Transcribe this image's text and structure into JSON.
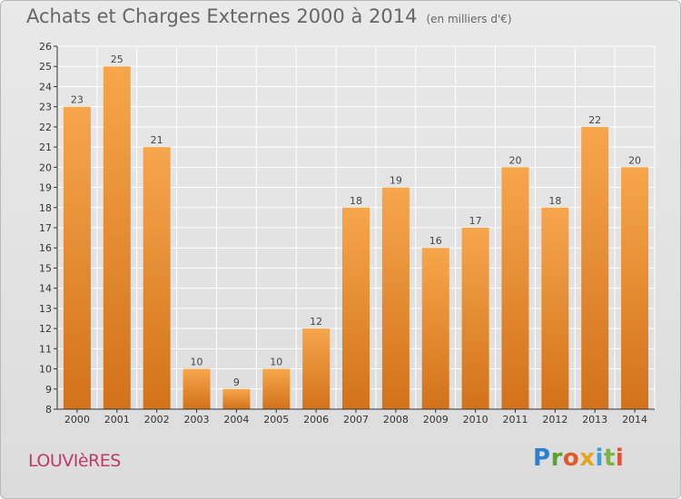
{
  "header": {
    "title": "Achats et Charges Externes 2000 à 2014",
    "unit": "(en milliers d'€)"
  },
  "footer": {
    "commune": "LOUVIèRES",
    "brand_letters": [
      {
        "ch": "P",
        "color": "#2d7fcf"
      },
      {
        "ch": "r",
        "color": "#5aa12f"
      },
      {
        "ch": "o",
        "color": "#e05a2a"
      },
      {
        "ch": "x",
        "color": "#e8a31a"
      },
      {
        "ch": "i",
        "color": "#3aa0d8"
      },
      {
        "ch": "t",
        "color": "#7cb342"
      },
      {
        "ch": "i",
        "color": "#e0523a"
      }
    ]
  },
  "colors": {
    "bar_top": "#f7a64c",
    "bar_bottom": "#d2721a",
    "grid": "#ffffff",
    "axis": "#333333"
  },
  "chart_data": {
    "type": "bar",
    "title": "Achats et Charges Externes 2000 à 2014",
    "ylabel": "",
    "xlabel": "",
    "categories": [
      "2000",
      "2001",
      "2002",
      "2003",
      "2004",
      "2005",
      "2006",
      "2007",
      "2008",
      "2009",
      "2010",
      "2011",
      "2012",
      "2013",
      "2014"
    ],
    "values": [
      23,
      25,
      21,
      10,
      9,
      10,
      12,
      18,
      19,
      16,
      17,
      20,
      18,
      22,
      20
    ],
    "ylim": [
      8,
      26
    ],
    "yticks": [
      8,
      9,
      10,
      11,
      12,
      13,
      14,
      15,
      16,
      17,
      18,
      19,
      20,
      21,
      22,
      23,
      24,
      25,
      26
    ],
    "grid": true
  }
}
